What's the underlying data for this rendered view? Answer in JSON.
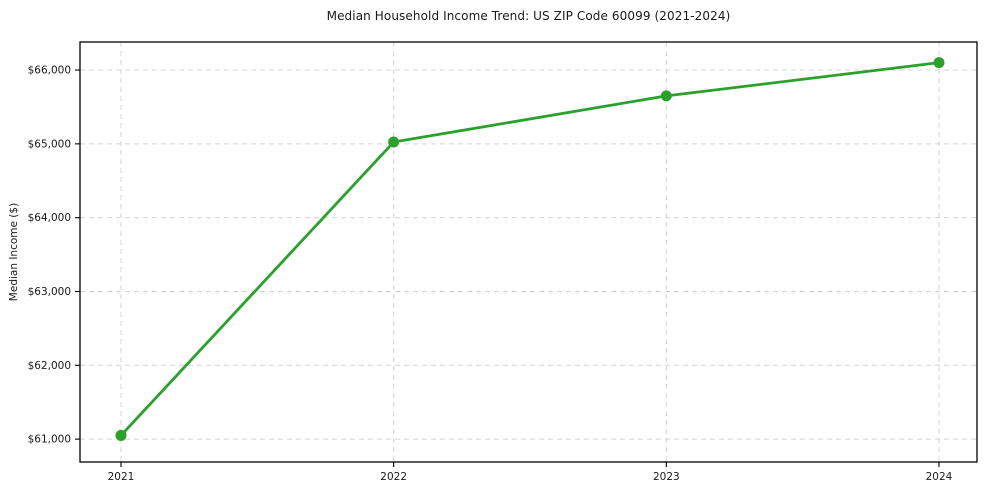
{
  "chart_data": {
    "type": "line",
    "title": "Median Household Income Trend: US ZIP Code 60099 (2021-2024)",
    "xlabel": "",
    "ylabel": "Median Income ($)",
    "categories": [
      "2021",
      "2022",
      "2023",
      "2024"
    ],
    "series": [
      {
        "name": "Median Household Income",
        "values": [
          61050,
          65025,
          65650,
          66100
        ]
      }
    ],
    "yticks": [
      {
        "value": 61000,
        "label": "$61,000"
      },
      {
        "value": 62000,
        "label": "$62,000"
      },
      {
        "value": 63000,
        "label": "$63,000"
      },
      {
        "value": 64000,
        "label": "$64,000"
      },
      {
        "value": 65000,
        "label": "$65,000"
      },
      {
        "value": 66000,
        "label": "$66,000"
      }
    ],
    "ylim": [
      60690,
      66380
    ],
    "grid": true,
    "grid_style": "dashed",
    "legend_position": "none",
    "line_color": "#2ca02c",
    "marker": "circle",
    "grid_color": "#d4d4d4",
    "spine_color": "#000000",
    "text_color": "#1a1a1a"
  }
}
